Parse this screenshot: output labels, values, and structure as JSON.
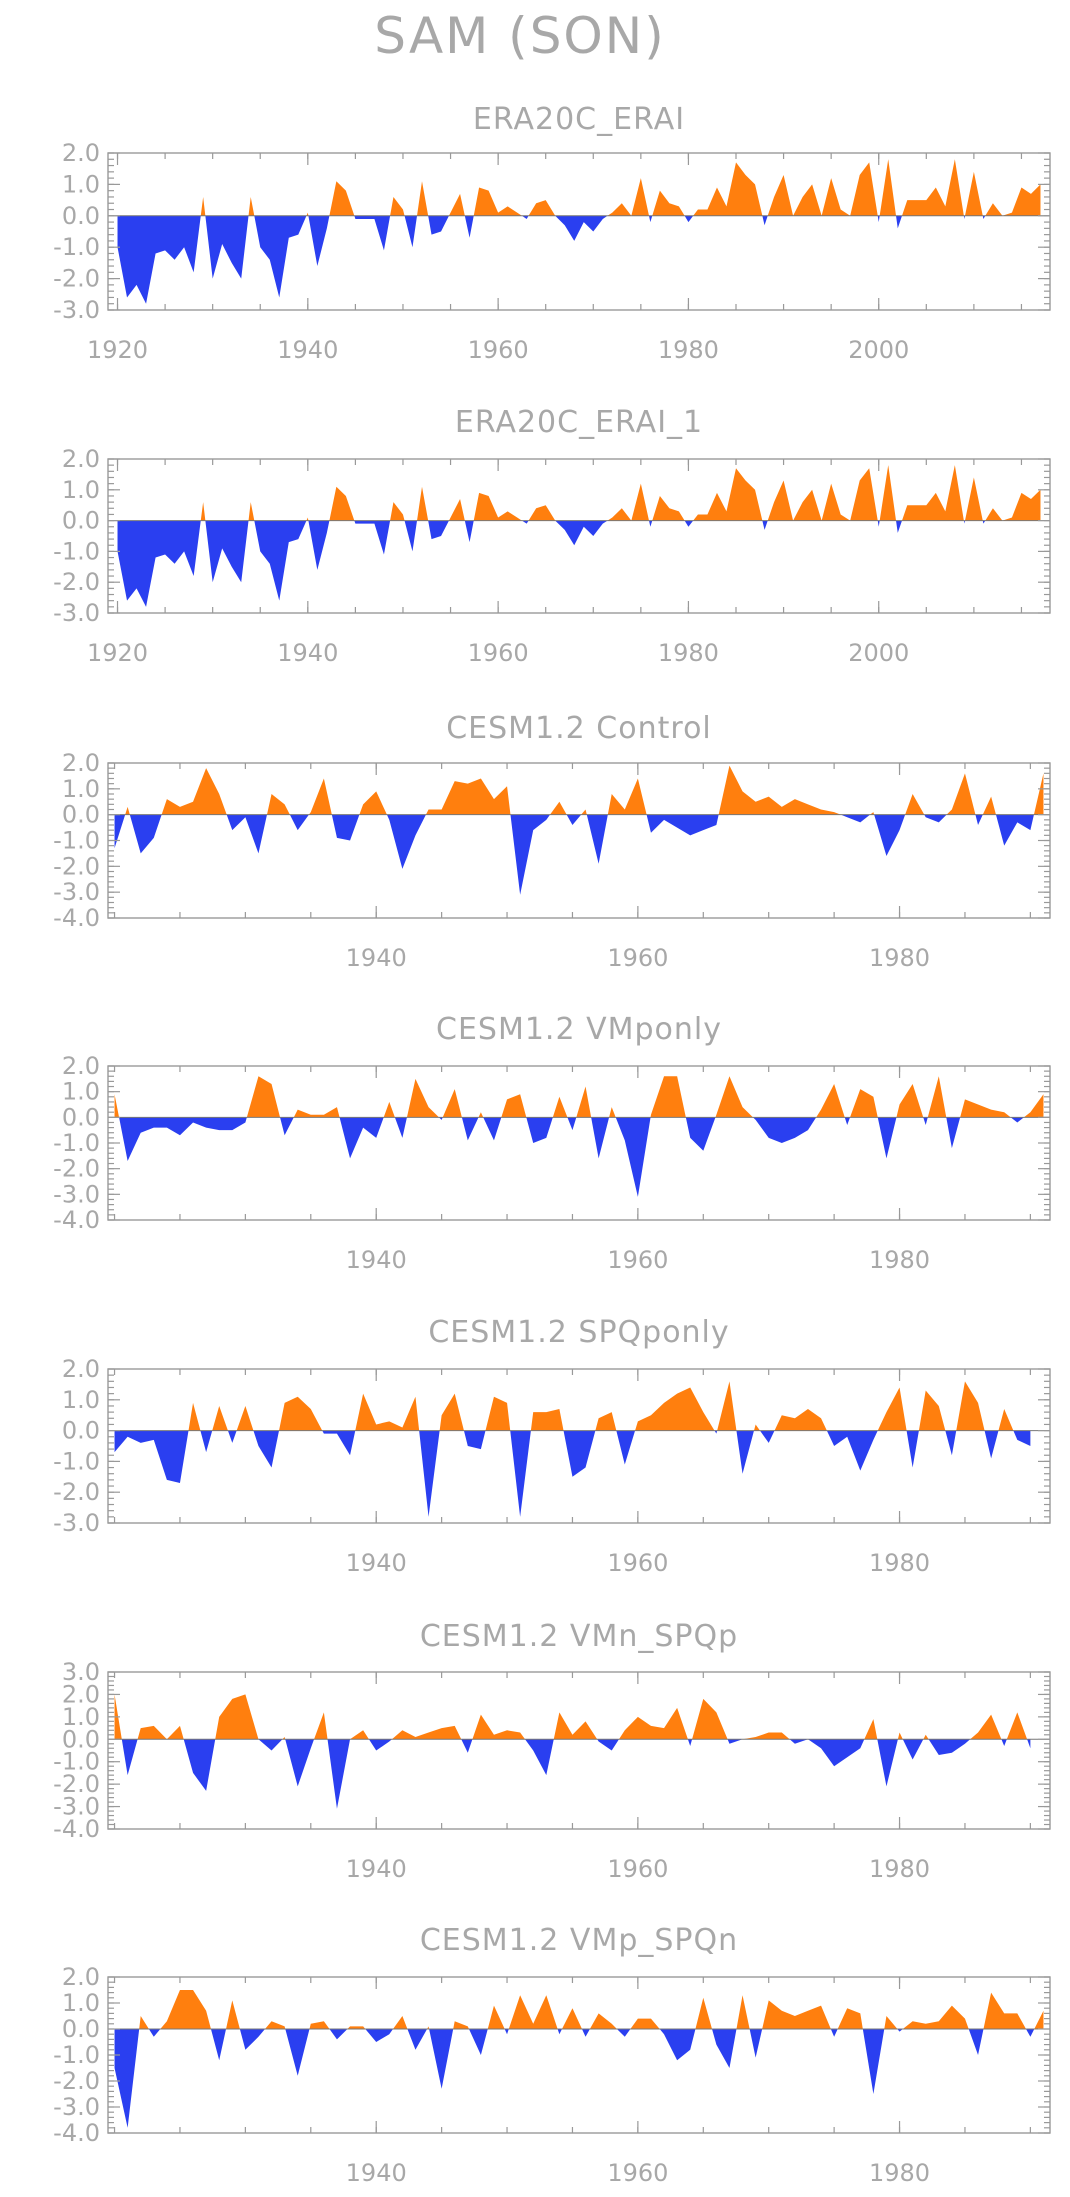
{
  "title": "SAM (SON)",
  "colors": {
    "positive": "#ff7f0e",
    "negative": "#2a3ff0",
    "text": "#a8a8a8",
    "axis": "#999999"
  },
  "chart_data": [
    {
      "type": "area",
      "title": "ERA20C_ERAI",
      "x_start": 1920,
      "xlim": [
        1919,
        2018
      ],
      "xticks": [
        1920,
        1940,
        1960,
        1980,
        2000
      ],
      "ylim": [
        -3.0,
        2.0
      ],
      "yticks": [
        2.0,
        1.0,
        0.0,
        -1.0,
        -2.0,
        -3.0
      ],
      "ytick_labels": [
        "2.0",
        "1.0",
        "0.0",
        "-1.0",
        "-2.0",
        "-3.0"
      ],
      "values": [
        -1.0,
        -2.6,
        -2.2,
        -2.8,
        -1.2,
        -1.1,
        -1.4,
        -1.0,
        -1.8,
        0.6,
        -2.0,
        -0.9,
        -1.5,
        -2.0,
        0.6,
        -1.0,
        -1.4,
        -2.6,
        -0.7,
        -0.6,
        0.1,
        -1.6,
        -0.4,
        1.1,
        0.8,
        -0.1,
        -0.1,
        -0.1,
        -1.1,
        0.6,
        0.2,
        -1.0,
        1.1,
        -0.6,
        -0.5,
        0.1,
        0.7,
        -0.7,
        0.9,
        0.8,
        0.1,
        0.3,
        0.1,
        -0.1,
        0.4,
        0.5,
        0.0,
        -0.3,
        -0.8,
        -0.2,
        -0.5,
        -0.1,
        0.1,
        0.4,
        0.0,
        1.2,
        -0.2,
        0.8,
        0.4,
        0.3,
        -0.2,
        0.2,
        0.2,
        0.9,
        0.3,
        1.7,
        1.3,
        1.0,
        -0.3,
        0.6,
        1.3,
        0.0,
        0.6,
        1.0,
        0.0,
        1.2,
        0.2,
        0.0,
        1.3,
        1.7,
        -0.2,
        1.8,
        -0.4,
        0.5,
        0.5,
        0.5,
        0.9,
        0.3,
        1.8,
        -0.1,
        1.4,
        -0.1,
        0.4,
        0.0,
        0.1,
        0.9,
        0.7,
        1.0
      ]
    },
    {
      "type": "area",
      "title": "ERA20C_ERAI_1",
      "x_start": 1920,
      "xlim": [
        1919,
        2018
      ],
      "xticks": [
        1920,
        1940,
        1960,
        1980,
        2000
      ],
      "ylim": [
        -3.0,
        2.0
      ],
      "yticks": [
        2.0,
        1.0,
        0.0,
        -1.0,
        -2.0,
        -3.0
      ],
      "ytick_labels": [
        "2.0",
        "1.0",
        "0.0",
        "-1.0",
        "-2.0",
        "-3.0"
      ],
      "values": [
        -1.0,
        -2.6,
        -2.2,
        -2.8,
        -1.2,
        -1.1,
        -1.4,
        -1.0,
        -1.8,
        0.6,
        -2.0,
        -0.9,
        -1.5,
        -2.0,
        0.6,
        -1.0,
        -1.4,
        -2.6,
        -0.7,
        -0.6,
        0.1,
        -1.6,
        -0.4,
        1.1,
        0.8,
        -0.1,
        -0.1,
        -0.1,
        -1.1,
        0.6,
        0.2,
        -1.0,
        1.1,
        -0.6,
        -0.5,
        0.1,
        0.7,
        -0.7,
        0.9,
        0.8,
        0.1,
        0.3,
        0.1,
        -0.1,
        0.4,
        0.5,
        0.0,
        -0.3,
        -0.8,
        -0.2,
        -0.5,
        -0.1,
        0.1,
        0.4,
        0.0,
        1.2,
        -0.2,
        0.8,
        0.4,
        0.3,
        -0.2,
        0.2,
        0.2,
        0.9,
        0.3,
        1.7,
        1.3,
        1.0,
        -0.3,
        0.6,
        1.3,
        0.0,
        0.6,
        1.0,
        0.0,
        1.2,
        0.2,
        0.0,
        1.3,
        1.7,
        -0.2,
        1.8,
        -0.4,
        0.5,
        0.5,
        0.5,
        0.9,
        0.3,
        1.8,
        -0.1,
        1.4,
        -0.1,
        0.4,
        0.0,
        0.1,
        0.9,
        0.7,
        1.0
      ]
    },
    {
      "type": "area",
      "title": "CESM1.2 Control",
      "x_start": 1920,
      "xlim": [
        1919.5,
        1991.5
      ],
      "xticks": [
        1940,
        1960,
        1980
      ],
      "ylim": [
        -4.0,
        2.0
      ],
      "yticks": [
        2.0,
        1.0,
        0.0,
        -1.0,
        -2.0,
        -3.0,
        -4.0
      ],
      "ytick_labels": [
        "2.0",
        "1.0",
        "0.0",
        "-1.0",
        "-2.0",
        "-3.0",
        "-4.0"
      ],
      "values": [
        -1.3,
        0.3,
        -1.5,
        -0.9,
        0.6,
        0.3,
        0.5,
        1.8,
        0.8,
        -0.6,
        -0.1,
        -1.5,
        0.8,
        0.4,
        -0.6,
        0.1,
        1.4,
        -0.9,
        -1.0,
        0.4,
        0.9,
        -0.2,
        -2.1,
        -0.8,
        0.2,
        0.2,
        1.3,
        1.2,
        1.4,
        0.6,
        1.1,
        -3.1,
        -0.6,
        -0.2,
        0.5,
        -0.4,
        0.2,
        -1.9,
        0.8,
        0.2,
        1.4,
        -0.7,
        -0.2,
        -0.5,
        -0.8,
        -0.6,
        -0.4,
        1.9,
        0.9,
        0.5,
        0.7,
        0.3,
        0.6,
        0.4,
        0.2,
        0.1,
        -0.1,
        -0.3,
        0.1,
        -1.6,
        -0.6,
        0.8,
        -0.1,
        -0.3,
        0.2,
        1.6,
        -0.4,
        0.7,
        -1.2,
        -0.3,
        -0.6,
        1.6
      ]
    },
    {
      "type": "area",
      "title": "CESM1.2 VMponly",
      "x_start": 1920,
      "xlim": [
        1919.5,
        1991.5
      ],
      "xticks": [
        1940,
        1960,
        1980
      ],
      "ylim": [
        -4.0,
        2.0
      ],
      "yticks": [
        2.0,
        1.0,
        0.0,
        -1.0,
        -2.0,
        -3.0,
        -4.0
      ],
      "ytick_labels": [
        "2.0",
        "1.0",
        "0.0",
        "-1.0",
        "-2.0",
        "-3.0",
        "-4.0"
      ],
      "values": [
        0.9,
        -1.7,
        -0.6,
        -0.4,
        -0.4,
        -0.7,
        -0.2,
        -0.4,
        -0.5,
        -0.5,
        -0.2,
        1.6,
        1.3,
        -0.7,
        0.3,
        0.1,
        0.1,
        0.4,
        -1.6,
        -0.4,
        -0.8,
        0.6,
        -0.8,
        1.5,
        0.4,
        -0.1,
        1.1,
        -0.9,
        0.2,
        -0.9,
        0.7,
        0.9,
        -1.0,
        -0.8,
        0.8,
        -0.5,
        1.2,
        -1.6,
        0.4,
        -0.9,
        -3.1,
        0.1,
        1.6,
        1.6,
        -0.8,
        -1.3,
        0.1,
        1.6,
        0.4,
        -0.1,
        -0.8,
        -1.0,
        -0.8,
        -0.5,
        0.3,
        1.3,
        -0.3,
        1.1,
        0.8,
        -1.6,
        0.5,
        1.3,
        -0.3,
        1.6,
        -1.2,
        0.7,
        0.5,
        0.3,
        0.2,
        -0.2,
        0.2,
        0.9
      ]
    },
    {
      "type": "area",
      "title": "CESM1.2 SPQponly",
      "x_start": 1920,
      "xlim": [
        1919.5,
        1991.5
      ],
      "xticks": [
        1940,
        1960,
        1980
      ],
      "ylim": [
        -3.0,
        2.0
      ],
      "yticks": [
        2.0,
        1.0,
        0.0,
        -1.0,
        -2.0,
        -3.0
      ],
      "ytick_labels": [
        "2.0",
        "1.0",
        "0.0",
        "-1.0",
        "-2.0",
        "-3.0"
      ],
      "values": [
        -0.7,
        -0.2,
        -0.4,
        -0.3,
        -1.6,
        -1.7,
        0.9,
        -0.7,
        0.8,
        -0.4,
        0.8,
        -0.5,
        -1.2,
        0.9,
        1.1,
        0.7,
        -0.1,
        -0.1,
        -0.8,
        1.2,
        0.2,
        0.3,
        0.1,
        1.1,
        -2.8,
        0.5,
        1.2,
        -0.5,
        -0.6,
        1.1,
        0.9,
        -2.8,
        0.6,
        0.6,
        0.7,
        -1.5,
        -1.2,
        0.4,
        0.6,
        -1.1,
        0.3,
        0.5,
        0.9,
        1.2,
        1.4,
        0.6,
        -0.1,
        1.6,
        -1.4,
        0.2,
        -0.4,
        0.5,
        0.4,
        0.7,
        0.4,
        -0.5,
        -0.2,
        -1.3,
        -0.3,
        0.6,
        1.4,
        -1.2,
        1.3,
        0.8,
        -0.8,
        1.6,
        0.9,
        -0.9,
        0.7,
        -0.3,
        -0.5
      ]
    },
    {
      "type": "area",
      "title": "CESM1.2 VMn_SPQp",
      "x_start": 1920,
      "xlim": [
        1919.5,
        1991.5
      ],
      "xticks": [
        1940,
        1960,
        1980
      ],
      "ylim": [
        -4.0,
        3.0
      ],
      "yticks": [
        3.0,
        2.0,
        1.0,
        0.0,
        -1.0,
        -2.0,
        -3.0,
        -4.0
      ],
      "ytick_labels": [
        "3.0",
        "2.0",
        "1.0",
        "0.0",
        "-1.0",
        "-2.0",
        "-3.0",
        "-4.0"
      ],
      "values": [
        2.0,
        -1.6,
        0.5,
        0.6,
        0.0,
        0.6,
        -1.5,
        -2.3,
        1.0,
        1.8,
        2.0,
        0.0,
        -0.5,
        0.1,
        -2.1,
        -0.4,
        1.2,
        -3.1,
        0.0,
        0.4,
        -0.5,
        -0.1,
        0.4,
        0.1,
        0.3,
        0.5,
        0.6,
        -0.6,
        1.1,
        0.2,
        0.4,
        0.3,
        -0.5,
        -1.6,
        1.2,
        0.2,
        0.8,
        -0.1,
        -0.5,
        0.4,
        1.0,
        0.6,
        0.5,
        1.4,
        -0.3,
        1.8,
        1.2,
        -0.2,
        0.0,
        0.1,
        0.3,
        0.3,
        -0.2,
        0.0,
        -0.4,
        -1.2,
        -0.8,
        -0.4,
        0.9,
        -2.1,
        0.3,
        -0.9,
        0.2,
        -0.7,
        -0.6,
        -0.2,
        0.3,
        1.1,
        -0.3,
        1.2,
        -0.4
      ]
    },
    {
      "type": "area",
      "title": "CESM1.2 VMp_SPQn",
      "x_start": 1920,
      "xlim": [
        1919.5,
        1991.5
      ],
      "xticks": [
        1940,
        1960,
        1980
      ],
      "ylim": [
        -4.0,
        2.0
      ],
      "yticks": [
        2.0,
        1.0,
        0.0,
        -1.0,
        -2.0,
        -3.0,
        -4.0
      ],
      "ytick_labels": [
        "2.0",
        "1.0",
        "0.0",
        "-1.0",
        "-2.0",
        "-3.0",
        "-4.0"
      ],
      "values": [
        -1.5,
        -3.8,
        0.5,
        -0.3,
        0.3,
        1.5,
        1.5,
        0.7,
        -1.2,
        1.1,
        -0.8,
        -0.3,
        0.3,
        0.1,
        -1.8,
        0.2,
        0.3,
        -0.4,
        0.1,
        0.1,
        -0.5,
        -0.2,
        0.5,
        -0.8,
        0.1,
        -2.3,
        0.3,
        0.1,
        -1.0,
        0.9,
        -0.2,
        1.3,
        0.2,
        1.3,
        -0.2,
        0.8,
        -0.3,
        0.6,
        0.2,
        -0.3,
        0.4,
        0.4,
        -0.2,
        -1.2,
        -0.8,
        1.2,
        -0.6,
        -1.5,
        1.3,
        -1.1,
        1.1,
        0.7,
        0.5,
        0.7,
        0.9,
        -0.3,
        0.8,
        0.6,
        -2.5,
        0.5,
        -0.1,
        0.3,
        0.2,
        0.3,
        0.9,
        0.4,
        -1.0,
        1.4,
        0.6,
        0.6,
        -0.3,
        0.7
      ]
    }
  ]
}
